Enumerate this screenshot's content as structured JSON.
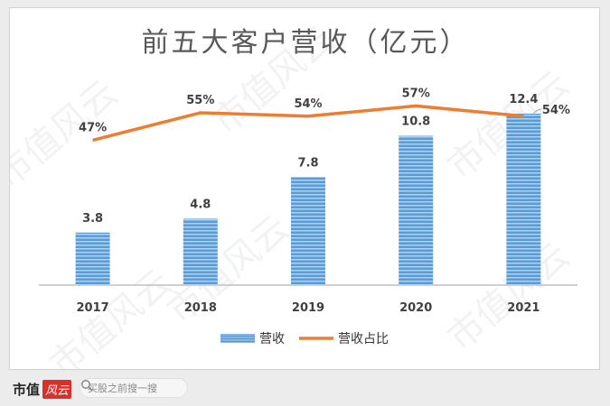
{
  "chart_data": {
    "type": "bar",
    "title": "前五大客户营收（亿元）",
    "categories": [
      "2017",
      "2018",
      "2019",
      "2020",
      "2021"
    ],
    "series": [
      {
        "name": "营收",
        "type": "bar",
        "values": [
          3.8,
          4.8,
          7.8,
          10.8,
          12.4
        ],
        "labels": [
          "3.8",
          "4.8",
          "7.8",
          "10.8",
          "12.4"
        ]
      },
      {
        "name": "营收占比",
        "type": "line",
        "values": [
          47,
          55,
          54,
          57,
          54
        ],
        "labels": [
          "47%",
          "55%",
          "54%",
          "57%",
          "54%"
        ]
      }
    ],
    "ylim": [
      0,
      15
    ],
    "y2lim": [
      0,
      65
    ],
    "legend": "bottom",
    "grid": false,
    "colors": {
      "bar": "#5b9bd5",
      "bar_stripe": "#ffffff",
      "line": "#ed7d31",
      "text": "#333333"
    }
  },
  "watermark": "市值风云",
  "footer": {
    "brand": "市值",
    "brand_logo": "风云",
    "search_placeholder": "买股之前搜一搜"
  }
}
